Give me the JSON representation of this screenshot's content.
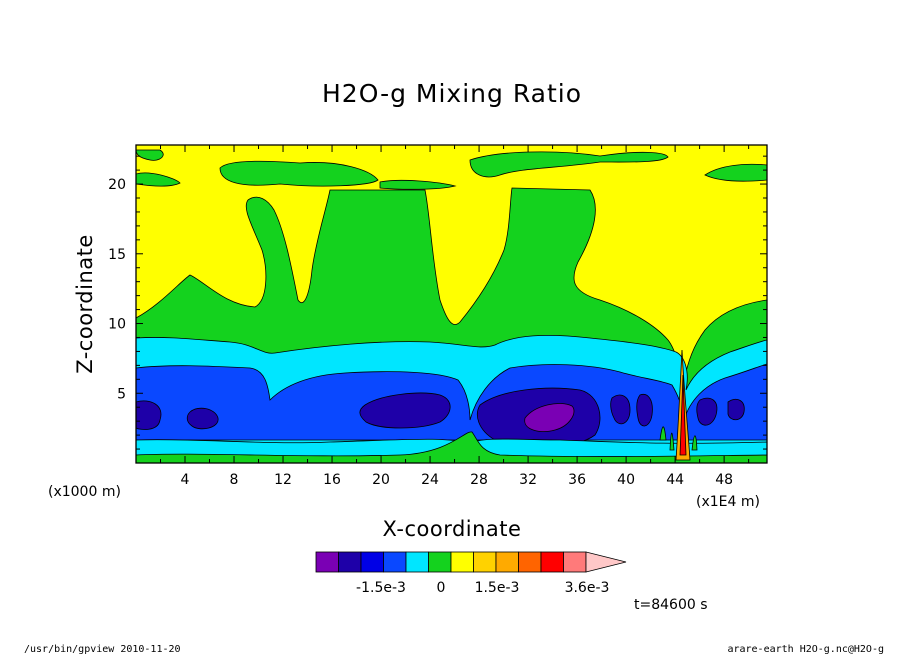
{
  "chart_data": {
    "type": "heatmap",
    "title": "H2O-g Mixing Ratio",
    "xlabel": "X-coordinate",
    "ylabel": "Z-coordinate",
    "x_unit_left": "(x1000 m)",
    "x_unit_right": "(x1E4 m)",
    "xlim": [
      0,
      51.5
    ],
    "ylim": [
      0,
      22.8
    ],
    "xticks": [
      4,
      8,
      12,
      16,
      20,
      24,
      28,
      32,
      36,
      40,
      44,
      48
    ],
    "yticks": [
      5,
      10,
      15,
      20
    ],
    "time_label": "t=84600 s",
    "colorbar": {
      "colors": [
        "#7a00b4",
        "#1e00a8",
        "#0000e6",
        "#0a48ff",
        "#00e6ff",
        "#14d21e",
        "#ffff00",
        "#ffd200",
        "#ffaa00",
        "#ff6400",
        "#ff0000",
        "#ff7a7a",
        "#ffc8c8"
      ],
      "tick_labels": [
        "-1.5e-3",
        "0",
        "1.5e-3",
        "3.6e-3"
      ]
    },
    "band_colors": {
      "yellow": "#ffff00",
      "green": "#14d21e",
      "cyan": "#00e6ff",
      "blue": "#0a48ff",
      "navy": "#1e00a8",
      "purple": "#7a00b4",
      "orange": "#ffaa00",
      "red": "#ff0000"
    }
  },
  "footer": {
    "left": "/usr/bin/gpview  2010-11-20",
    "right": "arare-earth_H2O-g.nc@H2O-g"
  }
}
